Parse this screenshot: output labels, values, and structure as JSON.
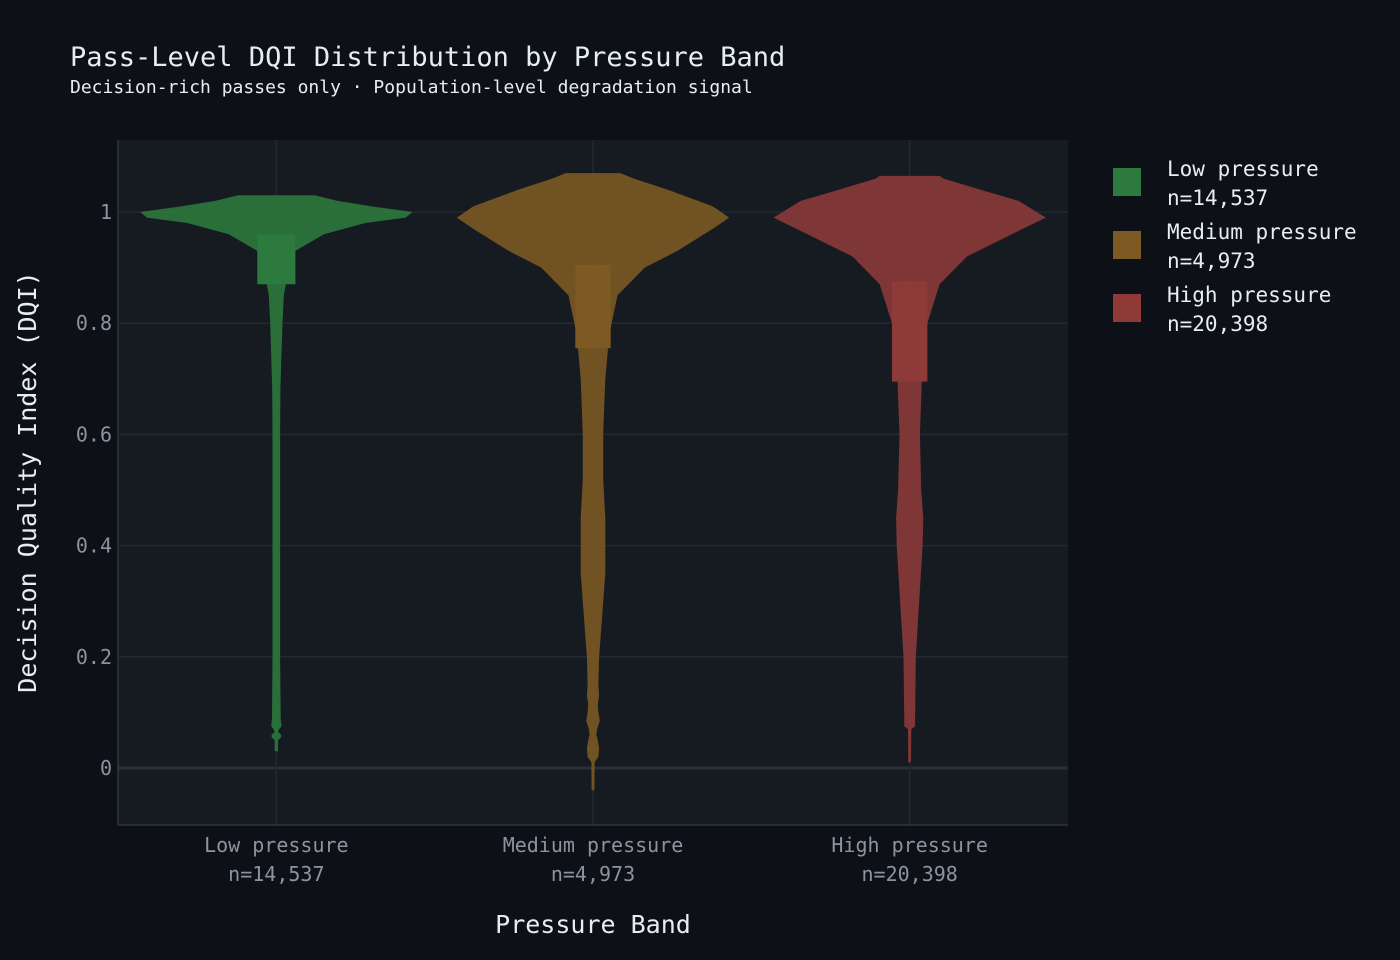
{
  "chart_data": {
    "type": "violin",
    "title": "Pass‑Level DQI Distribution by Pressure Band",
    "subtitle": "Decision‑rich passes only · Population‑level degradation signal",
    "xlabel": "Pressure Band",
    "ylabel": "Decision Quality Index (DQI)",
    "ylim": [
      -0.1,
      1.12
    ],
    "yticks": [
      0,
      0.2,
      0.4,
      0.6,
      0.8,
      1
    ],
    "ytick_labels": [
      "0",
      "0.2",
      "0.4",
      "0.6",
      "0.8",
      "1"
    ],
    "grid": true,
    "legend_position": "right",
    "categories": [
      "Low pressure",
      "Medium pressure",
      "High pressure"
    ],
    "series": [
      {
        "name": "Low pressure",
        "count_label": "n=14,537",
        "color": "#2d7a3e",
        "min": 0.03,
        "max": 1.03,
        "q1": 0.87,
        "q3": 0.96,
        "box_halfwidth": 0.14,
        "profile": [
          [
            0.03,
            0.012
          ],
          [
            0.05,
            0.012
          ],
          [
            0.055,
            0.035
          ],
          [
            0.06,
            0.035
          ],
          [
            0.065,
            0.012
          ],
          [
            0.07,
            0.02
          ],
          [
            0.075,
            0.038
          ],
          [
            0.09,
            0.032
          ],
          [
            0.2,
            0.028
          ],
          [
            0.4,
            0.028
          ],
          [
            0.6,
            0.028
          ],
          [
            0.68,
            0.03
          ],
          [
            0.73,
            0.036
          ],
          [
            0.8,
            0.045
          ],
          [
            0.85,
            0.055
          ],
          [
            0.87,
            0.07
          ],
          [
            0.93,
            0.14
          ],
          [
            0.96,
            0.35
          ],
          [
            0.98,
            0.65
          ],
          [
            0.99,
            0.95
          ],
          [
            1.0,
            1.0
          ],
          [
            1.01,
            0.7
          ],
          [
            1.02,
            0.45
          ],
          [
            1.03,
            0.28
          ]
        ]
      },
      {
        "name": "Medium pressure",
        "count_label": "n=4,973",
        "color": "#7d5a23",
        "min": -0.04,
        "max": 1.07,
        "q1": 0.755,
        "q3": 0.905,
        "box_halfwidth": 0.13,
        "profile": [
          [
            -0.04,
            0.01
          ],
          [
            0.01,
            0.012
          ],
          [
            0.02,
            0.04
          ],
          [
            0.035,
            0.045
          ],
          [
            0.05,
            0.035
          ],
          [
            0.06,
            0.025
          ],
          [
            0.07,
            0.03
          ],
          [
            0.085,
            0.05
          ],
          [
            0.1,
            0.04
          ],
          [
            0.115,
            0.035
          ],
          [
            0.13,
            0.045
          ],
          [
            0.15,
            0.04
          ],
          [
            0.2,
            0.045
          ],
          [
            0.25,
            0.06
          ],
          [
            0.35,
            0.09
          ],
          [
            0.45,
            0.09
          ],
          [
            0.52,
            0.075
          ],
          [
            0.6,
            0.075
          ],
          [
            0.7,
            0.09
          ],
          [
            0.78,
            0.12
          ],
          [
            0.85,
            0.18
          ],
          [
            0.9,
            0.38
          ],
          [
            0.93,
            0.62
          ],
          [
            0.97,
            0.88
          ],
          [
            0.99,
            1.0
          ],
          [
            1.01,
            0.88
          ],
          [
            1.04,
            0.55
          ],
          [
            1.06,
            0.3
          ],
          [
            1.07,
            0.2
          ]
        ]
      },
      {
        "name": "High pressure",
        "count_label": "n=20,398",
        "color": "#8e3a39",
        "min": 0.01,
        "max": 1.065,
        "q1": 0.695,
        "q3": 0.875,
        "box_halfwidth": 0.13,
        "profile": [
          [
            0.01,
            0.01
          ],
          [
            0.07,
            0.012
          ],
          [
            0.075,
            0.04
          ],
          [
            0.09,
            0.04
          ],
          [
            0.2,
            0.045
          ],
          [
            0.3,
            0.07
          ],
          [
            0.4,
            0.095
          ],
          [
            0.45,
            0.1
          ],
          [
            0.5,
            0.085
          ],
          [
            0.6,
            0.075
          ],
          [
            0.7,
            0.09
          ],
          [
            0.8,
            0.13
          ],
          [
            0.87,
            0.22
          ],
          [
            0.92,
            0.42
          ],
          [
            0.96,
            0.75
          ],
          [
            0.99,
            1.0
          ],
          [
            1.02,
            0.8
          ],
          [
            1.04,
            0.52
          ],
          [
            1.06,
            0.25
          ],
          [
            1.065,
            0.22
          ]
        ]
      }
    ]
  }
}
